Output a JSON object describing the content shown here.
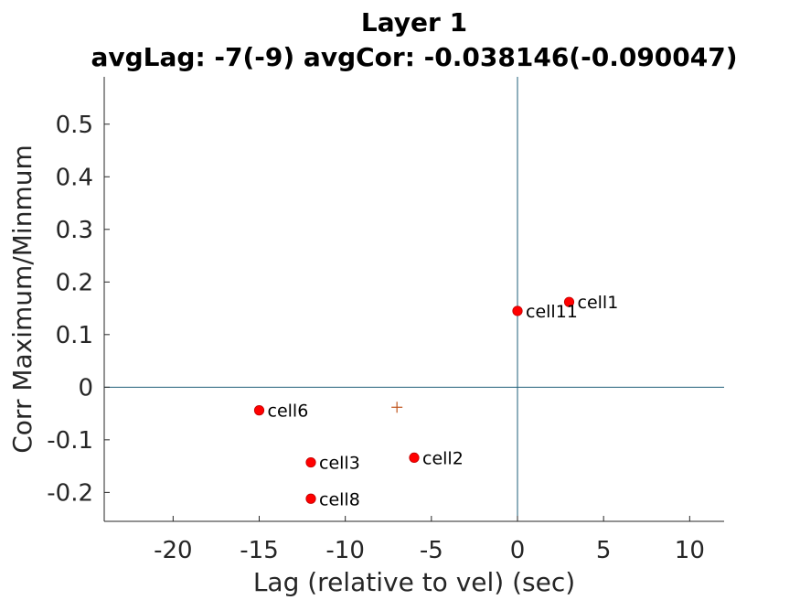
{
  "chart_data": {
    "type": "scatter",
    "title": "Layer 1",
    "subtitle": "avgLag: -7(-9) avgCor: -0.038146(-0.090047)",
    "xlabel": "Lag (relative to vel) (sec)",
    "ylabel": "Corr Maximum/Minmum",
    "xlim": [
      -24,
      12
    ],
    "ylim": [
      -0.255,
      0.59
    ],
    "xticks": [
      -20,
      -15,
      -10,
      -5,
      0,
      5,
      10
    ],
    "yticks": [
      0.5,
      0.4,
      0.3,
      0.2,
      0.1,
      0,
      -0.1,
      -0.2
    ],
    "xtick_labels": [
      "-20",
      "-15",
      "-10",
      "-5",
      "0",
      "5",
      "10"
    ],
    "ytick_labels": [
      "0.5",
      "0.4",
      "0.3",
      "0.2",
      "0.1",
      "0",
      "-0.1",
      "-0.2"
    ],
    "grid": false,
    "reference_lines": {
      "x": 0,
      "y": 0
    },
    "points": [
      {
        "label": "cell1",
        "x": 3,
        "y": 0.162
      },
      {
        "label": "cell11",
        "x": 0,
        "y": 0.145
      },
      {
        "label": "cell6",
        "x": -15,
        "y": -0.044
      },
      {
        "label": "cell2",
        "x": -6,
        "y": -0.134
      },
      {
        "label": "cell3",
        "x": -12,
        "y": -0.143
      },
      {
        "label": "cell8",
        "x": -12,
        "y": -0.212
      }
    ],
    "average_marker": {
      "x": -7,
      "y": -0.038146
    },
    "colors": {
      "points": "#ff0000",
      "average": "#c0561e",
      "reference": "#1f5f7a"
    }
  }
}
